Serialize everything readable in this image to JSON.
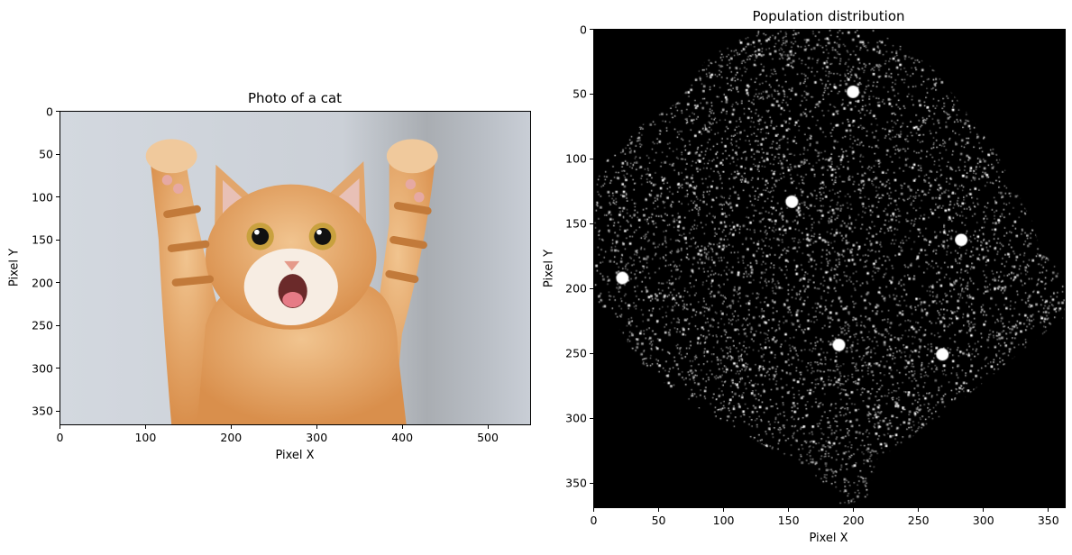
{
  "chart_data": [
    {
      "type": "image",
      "title": "Photo of a cat",
      "xlabel": "Pixel X",
      "ylabel": "Pixel Y",
      "xlim": [
        0,
        550
      ],
      "ylim": [
        366,
        0
      ],
      "xticks": [
        0,
        100,
        200,
        300,
        400,
        500
      ],
      "yticks": [
        0,
        50,
        100,
        150,
        200,
        250,
        300,
        350
      ],
      "content": "orange tabby kitten with raised paws on light grey background",
      "colors": {
        "background": "#cdd3db",
        "fur": "#e3a468"
      }
    },
    {
      "type": "heatmap",
      "title": "Population distribution",
      "xlabel": "Pixel X",
      "ylabel": "Pixel Y",
      "xlim": [
        0,
        363
      ],
      "ylim": [
        369,
        0
      ],
      "xticks": [
        0,
        50,
        100,
        150,
        200,
        250,
        300,
        350
      ],
      "yticks": [
        0,
        50,
        100,
        150,
        200,
        250,
        300,
        350
      ],
      "colormap": "gray",
      "colors": {
        "low": "#000000",
        "high": "#ffffff"
      }
    }
  ]
}
